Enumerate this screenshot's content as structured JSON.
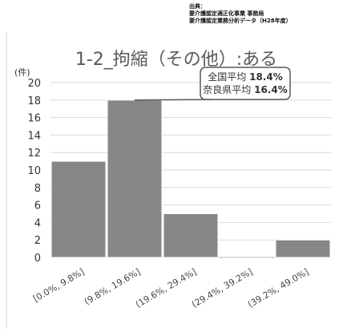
{
  "source": {
    "label": "出典：",
    "lines": [
      "要介護認定適正化事業 事務局",
      "要介護認定業務分析データ（H28年度）"
    ]
  },
  "chart_data": {
    "type": "bar",
    "title": "1-2_拘縮（その他）:ある",
    "ylabel": "(件)",
    "xlabel": "",
    "ylim": [
      0,
      20
    ],
    "yticks": [
      0,
      2,
      4,
      6,
      8,
      10,
      12,
      14,
      16,
      18,
      20
    ],
    "grid": true,
    "categories": [
      "[0.0%, 9.8%]",
      "(9.8%, 19.6%]",
      "(19.6%, 29.4%]",
      "(29.4%, 39.2%]",
      "(39.2%, 49.0%]"
    ],
    "values": [
      11,
      18,
      5,
      0,
      2
    ],
    "bar_color": "#878787",
    "annotation": {
      "lines": [
        {
          "label": "全国平均 ",
          "value": "18.4%"
        },
        {
          "label": "奈良県平均 ",
          "value": "16.4%"
        }
      ],
      "target_category": "(9.8%, 19.6%]"
    }
  }
}
